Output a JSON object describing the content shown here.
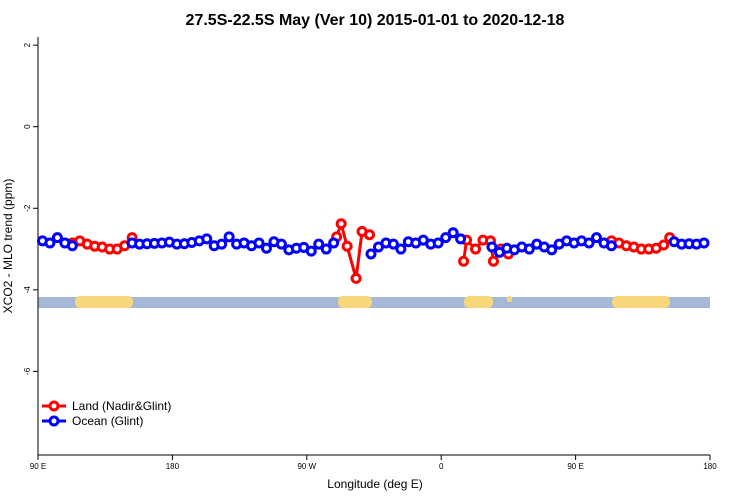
{
  "chart_data": {
    "type": "line",
    "title": "27.5S-22.5S May (Ver 10)   2015-01-01 to 2020-12-18",
    "x_label": "Longitude (deg E)",
    "y_label": "XCO2 - MLO trend (ppm)",
    "xlim": [
      90,
      540
    ],
    "xticks": [
      {
        "value": 90,
        "label": "90 E"
      },
      180,
      {
        "value": 270,
        "label": "90 W"
      },
      {
        "value": 360,
        "label": "0"
      },
      {
        "value": 450,
        "label": "90 E"
      },
      {
        "value": 540,
        "label": "180"
      }
    ],
    "ylim": [
      -8.05,
      2.2
    ],
    "yticks": [
      2,
      0,
      -2,
      -4,
      -6
    ],
    "legend": "bottom-left",
    "series": [
      {
        "name": "Land (Nadir&Glint)",
        "color": "#ff0000",
        "x": [
          113,
          118,
          123,
          128,
          133,
          138,
          143,
          148,
          153,
          200,
          290,
          293,
          297,
          303,
          307,
          312,
          340,
          375,
          377,
          383,
          388,
          393,
          395,
          400,
          405,
          450,
          474,
          479,
          484,
          489,
          494,
          499,
          504,
          509,
          513
        ],
        "values": [
          -2.85,
          -2.8,
          -2.88,
          -2.93,
          -2.95,
          -3.0,
          -3.0,
          -2.92,
          -2.72,
          null,
          -2.7,
          -2.38,
          -2.93,
          -3.72,
          -2.57,
          -2.65,
          null,
          -3.3,
          -2.78,
          -3.0,
          -2.78,
          -2.8,
          -3.3,
          -3.0,
          -3.12,
          null,
          -2.8,
          -2.85,
          -2.92,
          -2.95,
          -3.0,
          -3.0,
          -2.98,
          -2.9,
          -2.72
        ]
      },
      {
        "name": "Ocean (Glint)",
        "color": "#0000ff",
        "x": [
          93,
          98,
          103,
          108,
          113,
          118,
          153,
          158,
          163,
          168,
          173,
          178,
          183,
          188,
          193,
          198,
          203,
          208,
          213,
          218,
          223,
          228,
          233,
          238,
          243,
          248,
          253,
          258,
          263,
          268,
          273,
          278,
          283,
          288,
          290,
          313,
          318,
          323,
          328,
          333,
          338,
          343,
          348,
          353,
          358,
          363,
          368,
          373,
          380,
          394,
          399,
          404,
          409,
          414,
          419,
          424,
          429,
          434,
          439,
          444,
          449,
          454,
          459,
          464,
          469,
          474,
          480,
          516,
          521,
          526,
          531,
          536
        ],
        "values": [
          -2.8,
          -2.85,
          -2.72,
          -2.85,
          -2.92,
          null,
          -2.85,
          -2.88,
          -2.87,
          -2.86,
          -2.85,
          -2.83,
          -2.88,
          -2.87,
          -2.84,
          -2.8,
          -2.75,
          -2.92,
          -2.88,
          -2.7,
          -2.88,
          -2.85,
          -2.92,
          -2.85,
          -2.98,
          -2.82,
          -2.88,
          -3.02,
          -2.98,
          -2.96,
          -3.05,
          -2.88,
          -3.0,
          -2.85,
          null,
          -3.12,
          -2.95,
          -2.85,
          -2.88,
          -3.0,
          -2.82,
          -2.85,
          -2.78,
          -2.88,
          -2.85,
          -2.72,
          -2.6,
          -2.75,
          null,
          -2.95,
          -3.08,
          -2.98,
          -3.02,
          -2.95,
          -3.0,
          -2.88,
          -2.95,
          -3.02,
          -2.88,
          -2.8,
          -2.85,
          -2.8,
          -2.85,
          -2.72,
          -2.85,
          -2.92,
          null,
          -2.82,
          -2.88,
          -2.87,
          -2.88,
          -2.85
        ]
      }
    ]
  }
}
